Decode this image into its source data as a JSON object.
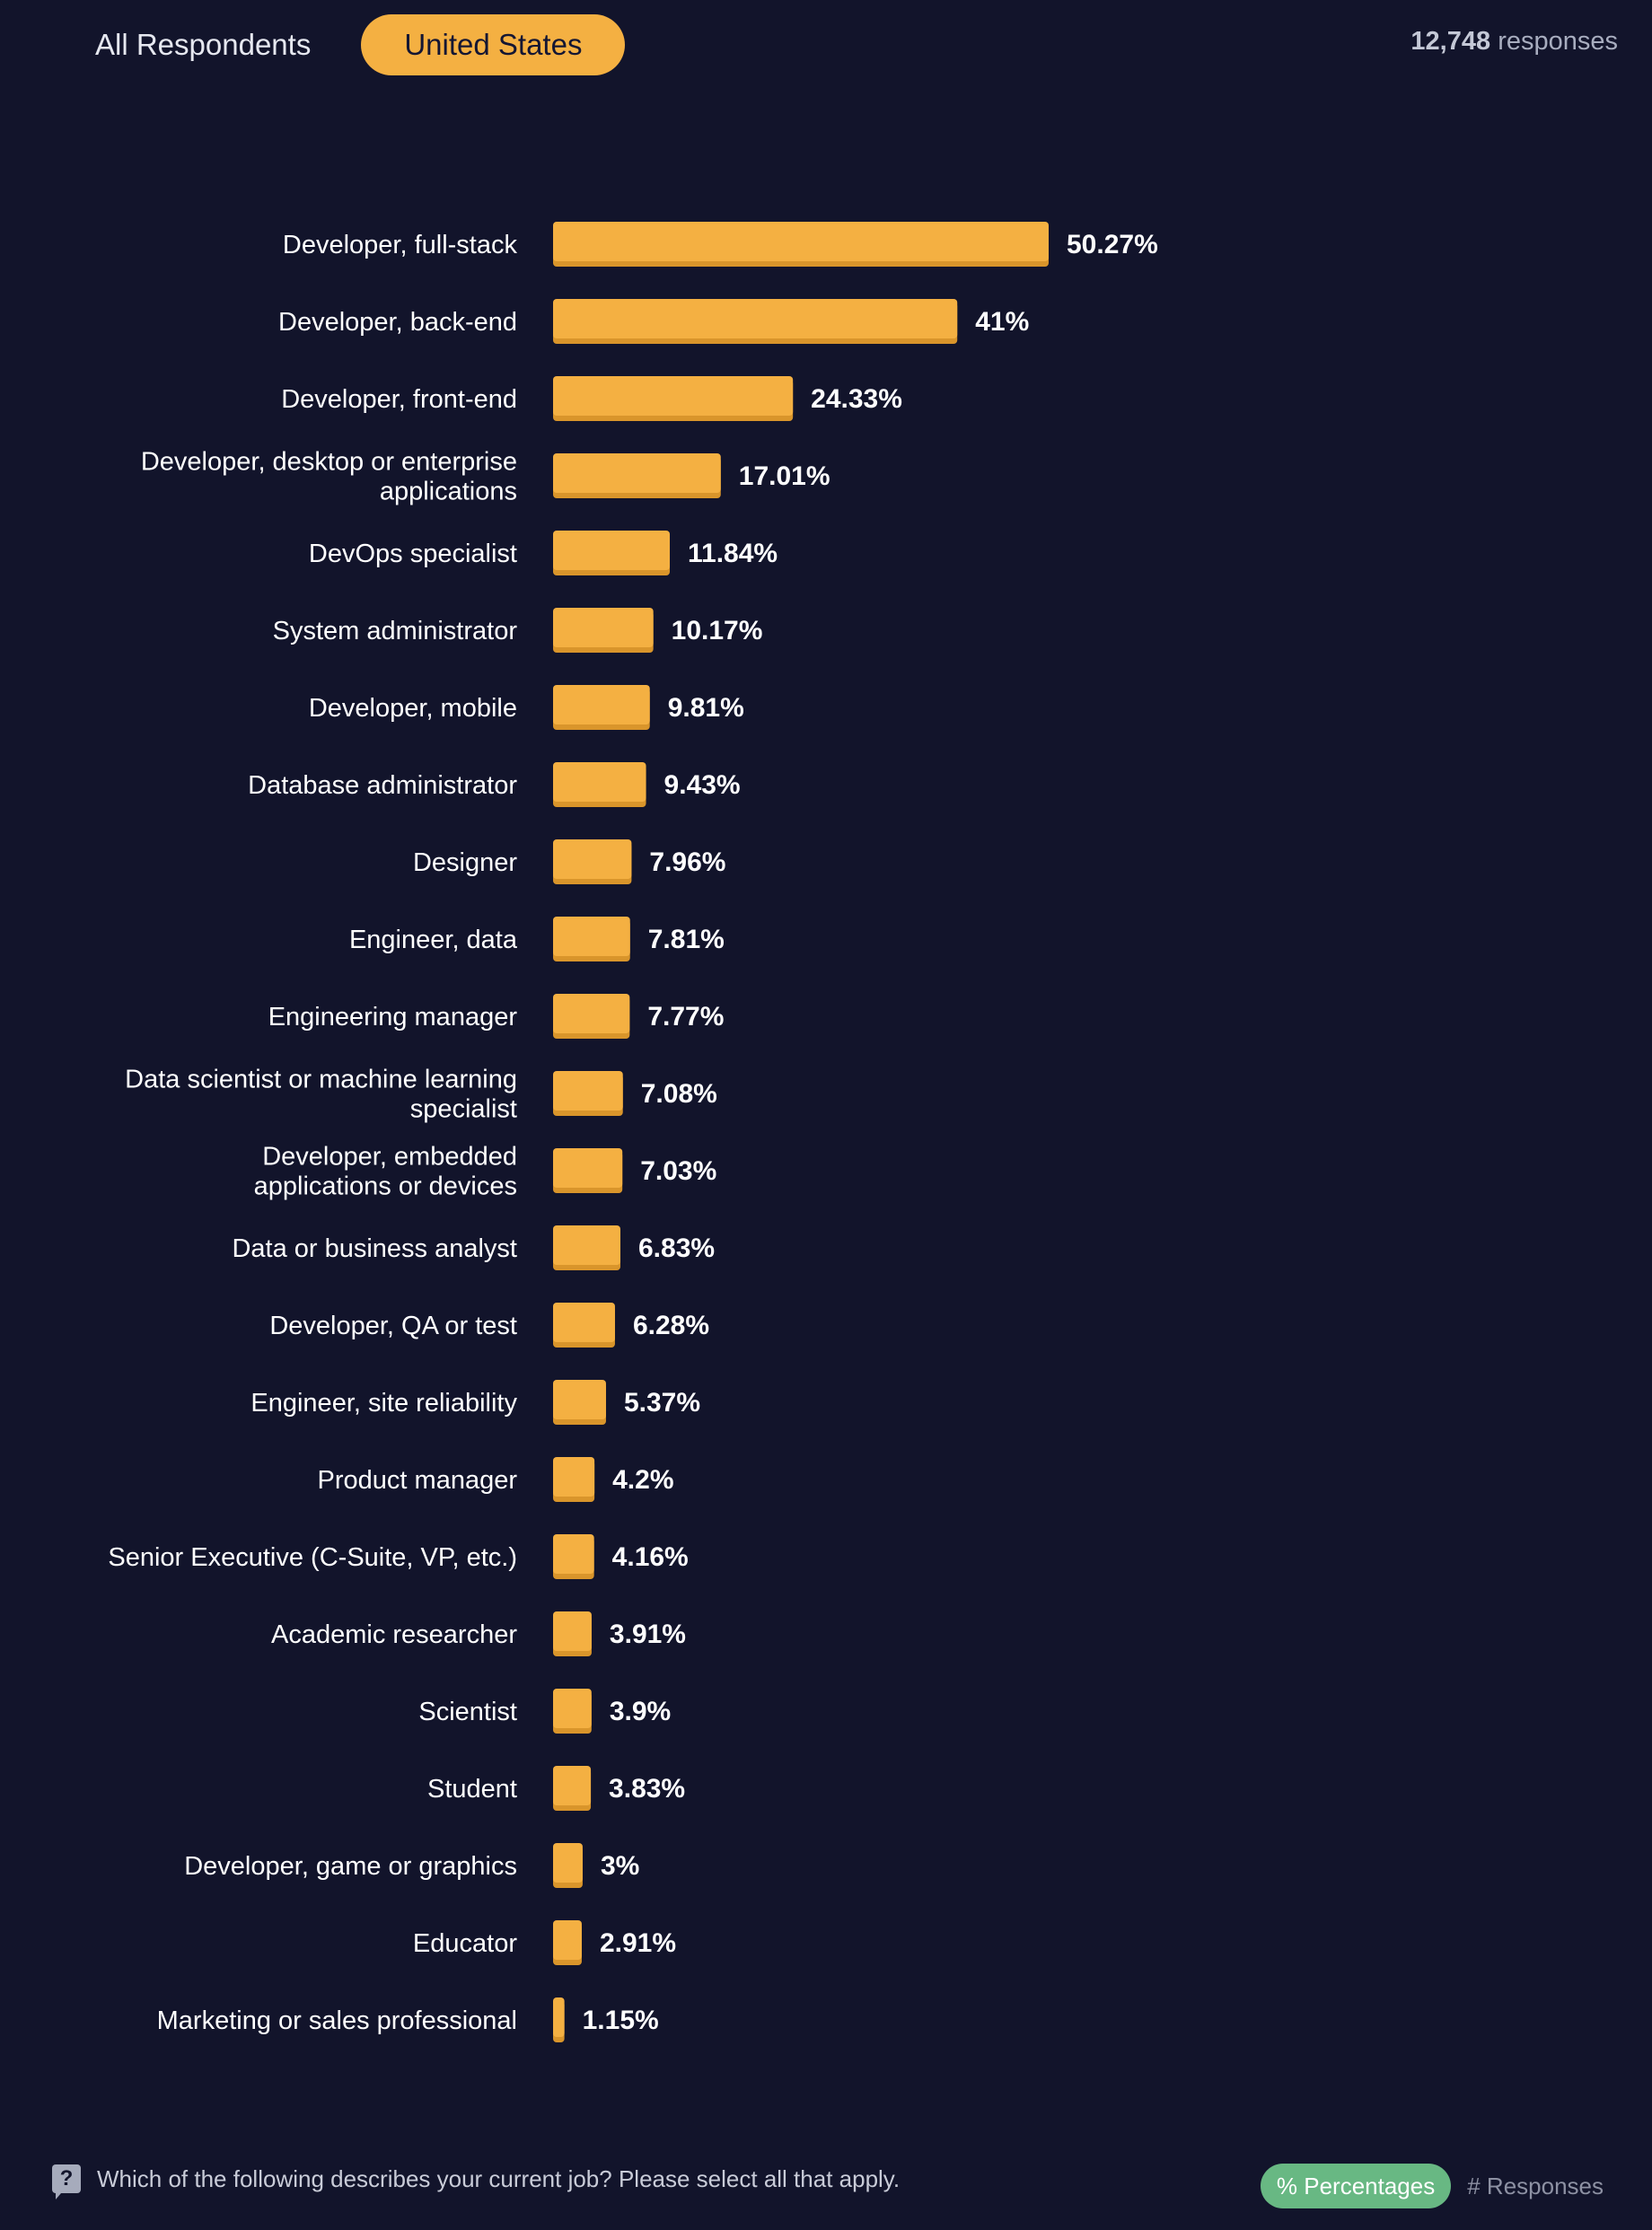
{
  "tabs": [
    {
      "label": "All Respondents",
      "active": false
    },
    {
      "label": "United States",
      "active": true
    }
  ],
  "responses": {
    "count": "12,748",
    "suffix": "responses"
  },
  "question": "Which of the following describes your current job? Please select all that apply.",
  "view_toggle": {
    "percentages_label": "% Percentages",
    "responses_label": "# Responses"
  },
  "colors": {
    "background": "#12142b",
    "bar": "#f4b042",
    "bar_shadow": "#d9952b",
    "toggle_active": "#68b883"
  },
  "chart_data": {
    "type": "bar",
    "orientation": "horizontal",
    "title": "",
    "xlabel": "",
    "ylabel": "",
    "xlim": [
      0,
      70
    ],
    "grid": false,
    "categories": [
      "Developer, full-stack",
      "Developer, back-end",
      "Developer, front-end",
      "Developer, desktop or enterprise applications",
      "DevOps specialist",
      "System administrator",
      "Developer, mobile",
      "Database administrator",
      "Designer",
      "Engineer, data",
      "Engineering manager",
      "Data scientist or machine learning specialist",
      "Developer, embedded applications or devices",
      "Data or business analyst",
      "Developer, QA or test",
      "Engineer, site reliability",
      "Product manager",
      "Senior Executive (C-Suite, VP, etc.)",
      "Academic researcher",
      "Scientist",
      "Student",
      "Developer, game or graphics",
      "Educator",
      "Marketing or sales professional"
    ],
    "category_lines": [
      [
        "Developer, full-stack"
      ],
      [
        "Developer, back-end"
      ],
      [
        "Developer, front-end"
      ],
      [
        "Developer, desktop or enterprise",
        "applications"
      ],
      [
        "DevOps specialist"
      ],
      [
        "System administrator"
      ],
      [
        "Developer, mobile"
      ],
      [
        "Database administrator"
      ],
      [
        "Designer"
      ],
      [
        "Engineer, data"
      ],
      [
        "Engineering manager"
      ],
      [
        "Data scientist or machine learning",
        "specialist"
      ],
      [
        "Developer, embedded",
        "applications or devices"
      ],
      [
        "Data or business analyst"
      ],
      [
        "Developer, QA or test"
      ],
      [
        "Engineer, site reliability"
      ],
      [
        "Product manager"
      ],
      [
        "Senior Executive (C-Suite, VP, etc.)"
      ],
      [
        "Academic researcher"
      ],
      [
        "Scientist"
      ],
      [
        "Student"
      ],
      [
        "Developer, game or graphics"
      ],
      [
        "Educator"
      ],
      [
        "Marketing or sales professional"
      ]
    ],
    "values": [
      50.27,
      41,
      24.33,
      17.01,
      11.84,
      10.17,
      9.81,
      9.43,
      7.96,
      7.81,
      7.77,
      7.08,
      7.03,
      6.83,
      6.28,
      5.37,
      4.2,
      4.16,
      3.91,
      3.9,
      3.83,
      3,
      2.91,
      1.15
    ],
    "value_labels": [
      "50.27%",
      "41%",
      "24.33%",
      "17.01%",
      "11.84%",
      "10.17%",
      "9.81%",
      "9.43%",
      "7.96%",
      "7.81%",
      "7.77%",
      "7.08%",
      "7.03%",
      "6.83%",
      "6.28%",
      "5.37%",
      "4.2%",
      "4.16%",
      "3.91%",
      "3.9%",
      "3.83%",
      "3%",
      "2.91%",
      "1.15%"
    ]
  }
}
